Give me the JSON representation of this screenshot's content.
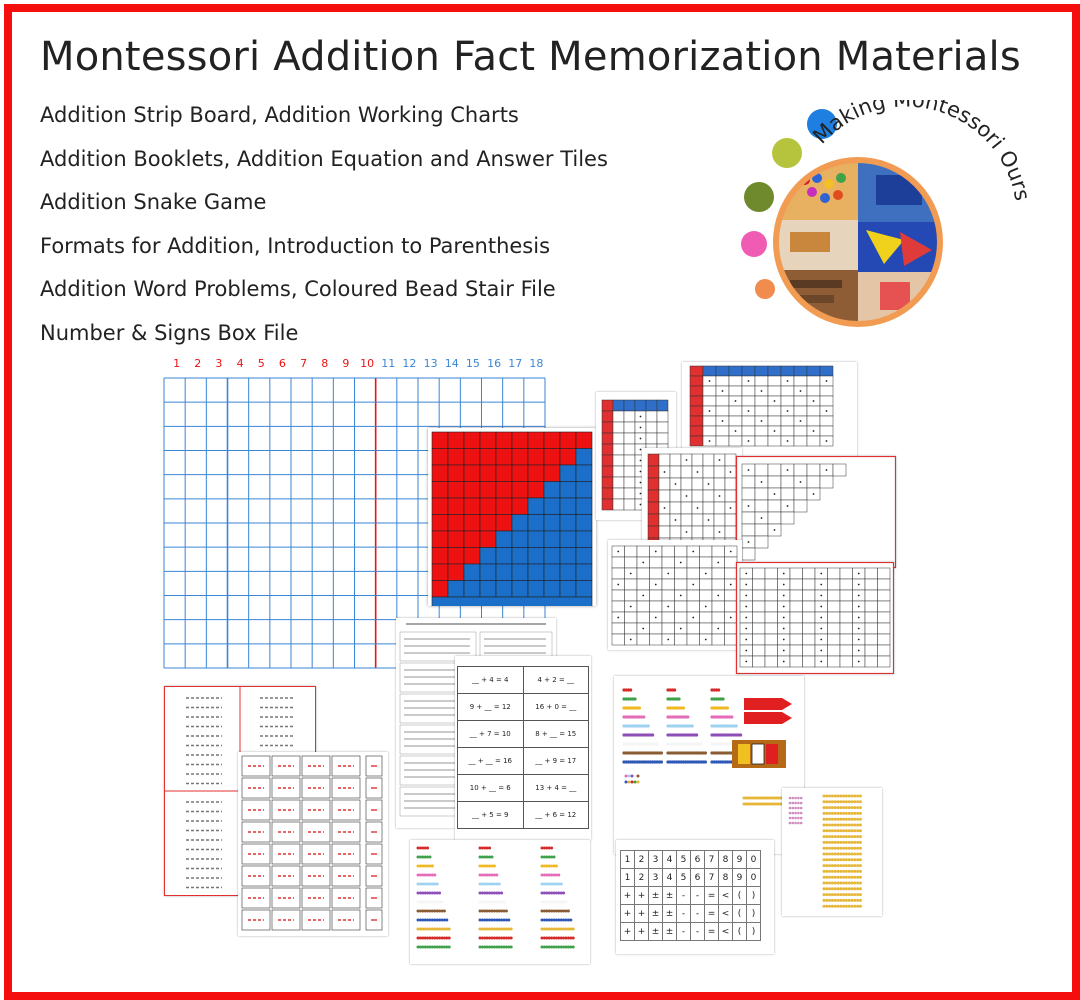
{
  "title": "Montessori Addition Fact Memorization Materials",
  "items": [
    "Addition Strip Board, Addition Working Charts",
    "Addition Booklets, Addition Equation and Answer Tiles",
    "Addition Snake Game",
    "Formats for Addition, Introduction to Parenthesis",
    "Addition Word Problems, Coloured Bead Stair File",
    "Number & Signs Box File"
  ],
  "logo_text": "Making Montessori Ours",
  "strip_board": {
    "numbers": [
      "1",
      "2",
      "3",
      "4",
      "5",
      "6",
      "7",
      "8",
      "9",
      "10",
      "11",
      "12",
      "13",
      "14",
      "15",
      "16",
      "17",
      "18"
    ]
  },
  "equation_tiles": [
    [
      "__ + 4 = 4",
      "4 + 2 = __"
    ],
    [
      "9 + __ = 12",
      "16 + 0 = __"
    ],
    [
      "__ + 7 = 10",
      "8 + __ = 15"
    ],
    [
      "__ + __ = 16",
      "__ + 9 = 17"
    ],
    [
      "10 + __ = 6",
      "13 + 4 = __"
    ],
    [
      "__ + 5 = 9",
      "__ + 6 = 12"
    ]
  ],
  "sign_box": {
    "numbers": [
      "1",
      "2",
      "3",
      "4",
      "5",
      "6",
      "7",
      "8",
      "9",
      "0"
    ],
    "signs": [
      "+",
      "+",
      "±",
      "±",
      "-",
      "-",
      "=",
      "<",
      "(",
      ")"
    ]
  },
  "colors": {
    "border": "#f40e0e",
    "grid_blue": "#3a86d6",
    "red": "#ee1111",
    "blue": "#1b6fc9",
    "logo_ring": "#f29b53"
  }
}
